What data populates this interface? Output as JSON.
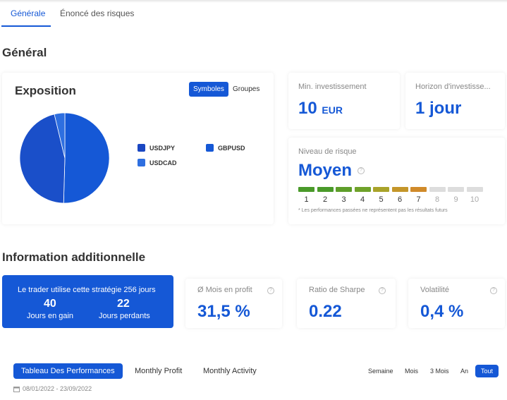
{
  "tabs": [
    {
      "label": "Générale",
      "active": true
    },
    {
      "label": "Énoncé des risques",
      "active": false
    }
  ],
  "general": {
    "title": "Général",
    "exposition": {
      "title": "Exposition",
      "toggles": [
        {
          "label": "Symboles",
          "active": true
        },
        {
          "label": "Groupes",
          "active": false
        }
      ],
      "legend": [
        {
          "label": "USDJPY",
          "color": "#1a47c2"
        },
        {
          "label": "GBPUSD",
          "color": "#1558d6"
        },
        {
          "label": "USDCAD",
          "color": "#2e6fe0"
        }
      ]
    },
    "min_investment": {
      "label": "Min. investissement",
      "value": "10",
      "unit": "EUR"
    },
    "horizon": {
      "label": "Horizon d'investisse...",
      "value": "1 jour"
    },
    "risk": {
      "label": "Niveau de risque",
      "value": "Moyen",
      "level": 7,
      "scale": [
        "1",
        "2",
        "3",
        "4",
        "5",
        "6",
        "7",
        "8",
        "9",
        "10"
      ],
      "colors": [
        "#4a9a2a",
        "#4a9a2a",
        "#5e9e2a",
        "#6fa22a",
        "#a9a32a",
        "#c4962a",
        "#d08a2a",
        "#dddddd",
        "#dddddd",
        "#dddddd"
      ],
      "footnote": "* Les performances passées ne représentent pas les résultats futurs"
    }
  },
  "additional": {
    "title": "Information additionnelle",
    "strategy": {
      "text": "Le trader utilise cette stratégie 256 jours",
      "gain_value": "40",
      "gain_label": "Jours en gain",
      "loss_value": "22",
      "loss_label": "Jours perdants"
    },
    "stats": [
      {
        "label": "Ø Mois en profit",
        "value": "31,5 %"
      },
      {
        "label": "Ratio de Sharpe",
        "value": "0.22"
      },
      {
        "label": "Volatilité",
        "value": "0,4 %"
      }
    ]
  },
  "performance": {
    "tabs": [
      {
        "label": "Tableau Des Performances",
        "active": true
      },
      {
        "label": "Monthly Profit",
        "active": false
      },
      {
        "label": "Monthly Activity",
        "active": false
      }
    ],
    "periods": [
      {
        "label": "Semaine",
        "active": false
      },
      {
        "label": "Mois",
        "active": false
      },
      {
        "label": "3 Mois",
        "active": false
      },
      {
        "label": "An",
        "active": false
      },
      {
        "label": "Tout",
        "active": true
      }
    ],
    "date_range": "08/01/2022 - 23/09/2022"
  },
  "colors": {
    "accent": "#1558d6"
  }
}
